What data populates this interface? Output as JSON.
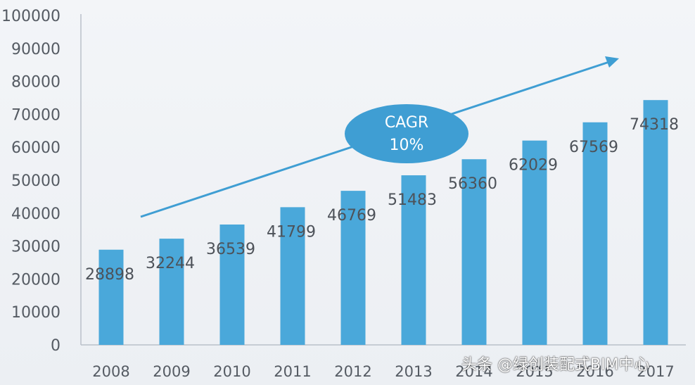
{
  "chart_data": {
    "type": "bar",
    "categories": [
      "2008",
      "2009",
      "2010",
      "2011",
      "2012",
      "2013",
      "2014",
      "2015",
      "2016",
      "2017"
    ],
    "values": [
      28898,
      32244,
      36539,
      41799,
      46769,
      51483,
      56360,
      62029,
      67569,
      74318
    ],
    "data_labels": [
      "28898",
      "32244",
      "36539",
      "41799",
      "46769",
      "51483",
      "56360",
      "62029",
      "67569",
      "74318"
    ],
    "y_ticks": [
      "0",
      "10000",
      "20000",
      "30000",
      "40000",
      "50000",
      "60000",
      "70000",
      "80000",
      "90000",
      "100000"
    ],
    "ylim": [
      0,
      100000
    ],
    "grid": false,
    "bar_color": "#4aa8da",
    "annotation": {
      "line1": "CAGR",
      "line2": "10%",
      "color": "#3f9ed3"
    },
    "trend_arrow_color": "#3f9ed3"
  },
  "watermark": {
    "text": "头条 @绿创装配式BIM中心"
  }
}
